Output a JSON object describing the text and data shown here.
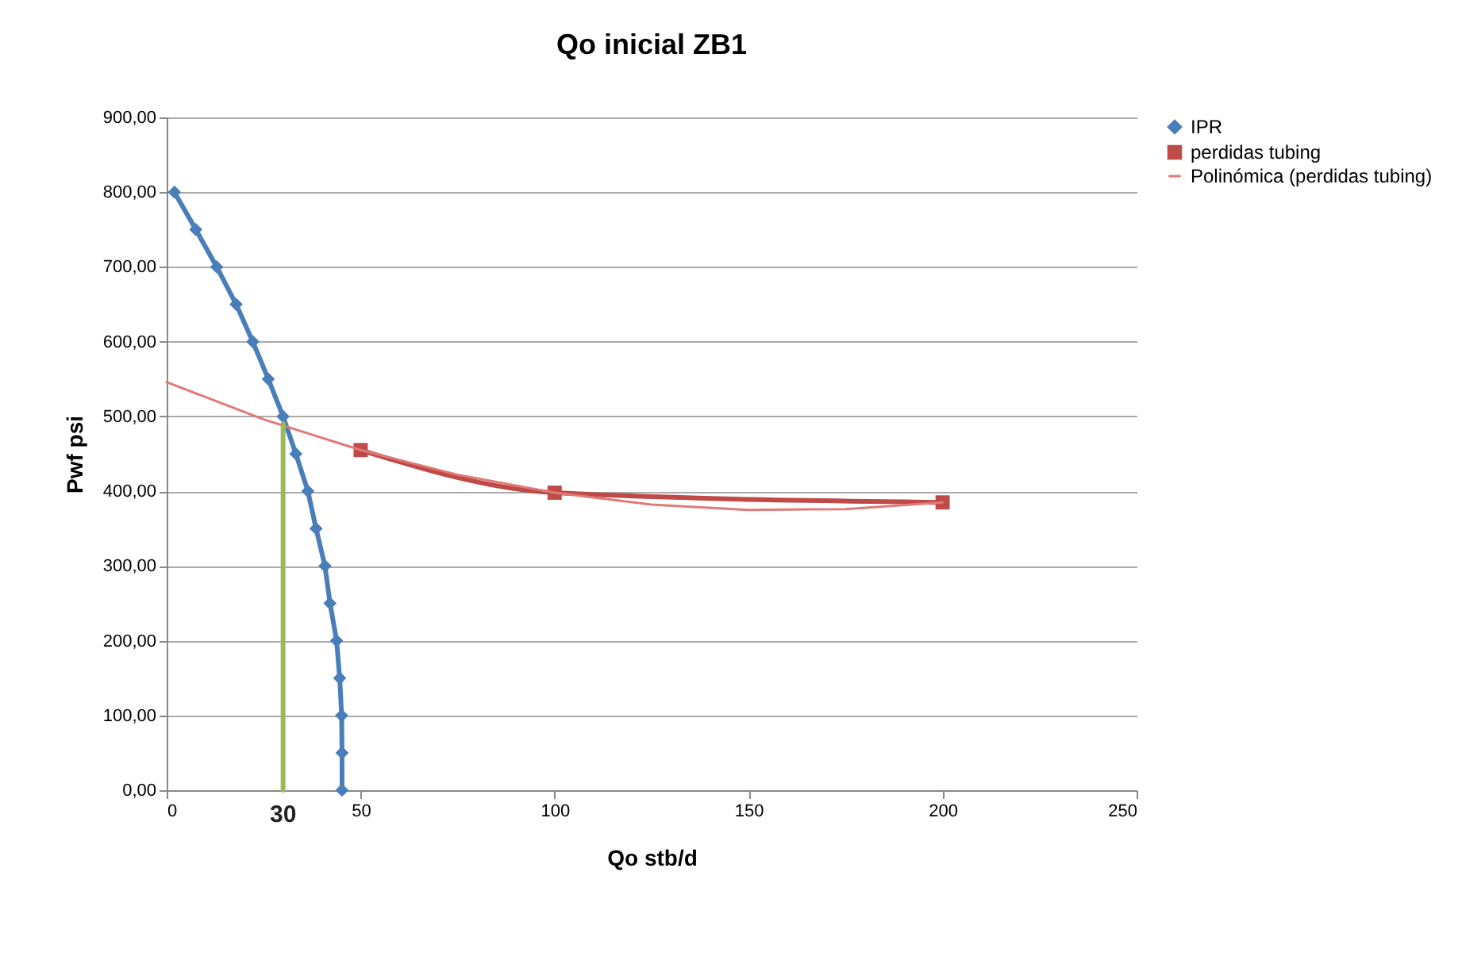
{
  "chart_data": {
    "type": "line",
    "title": "Qo inicial ZB1",
    "xlabel": "Qo stb/d",
    "ylabel": "Pwf psi",
    "xlim": [
      0,
      250
    ],
    "xticks": [
      0,
      50,
      100,
      150,
      200,
      250
    ],
    "ylim": [
      0,
      900
    ],
    "yticks": [
      {
        "value": 0,
        "label": "0,00"
      },
      {
        "value": 100,
        "label": "100,00"
      },
      {
        "value": 200,
        "label": "200,00"
      },
      {
        "value": 300,
        "label": "300,00"
      },
      {
        "value": 400,
        "label": "400,00"
      },
      {
        "value": 500,
        "label": "500,00"
      },
      {
        "value": 600,
        "label": "600,00"
      },
      {
        "value": 700,
        "label": "700,00"
      },
      {
        "value": 800,
        "label": "800,00"
      },
      {
        "value": 900,
        "label": "900,00"
      }
    ],
    "grid": "y",
    "legend": "right",
    "series": [
      {
        "name": "IPR",
        "color": "#4a7ebb",
        "marker": "diamond",
        "x": [
          2,
          7.5,
          12.9,
          17.9,
          22.2,
          26.2,
          30,
          33.3,
          36.4,
          38.5,
          40.8,
          42.1,
          43.8,
          44.6,
          45.1,
          45.2,
          45.2
        ],
        "values": [
          800,
          750,
          700,
          650,
          600,
          550,
          500,
          450,
          400,
          350,
          300,
          250,
          200,
          150,
          100,
          50,
          0
        ]
      },
      {
        "name": "perdidas tubing",
        "color": "#be4b48",
        "marker": "square",
        "x": [
          50,
          100,
          200
        ],
        "values": [
          455,
          398,
          385
        ]
      },
      {
        "name": "Polinómica (perdidas tubing)",
        "color": "#e07a78",
        "marker": "none",
        "x": [
          0,
          25,
          50,
          75,
          100,
          125,
          150,
          175,
          200
        ],
        "values": [
          546,
          496,
          455,
          422,
          398,
          382,
          375,
          376,
          385
        ]
      },
      {
        "color": "#9bbb59",
        "marker": "none",
        "x": [
          30,
          30
        ],
        "values": [
          0,
          490
        ]
      }
    ],
    "annotations": [
      {
        "text": "30",
        "x": 30,
        "y": 0
      }
    ]
  }
}
